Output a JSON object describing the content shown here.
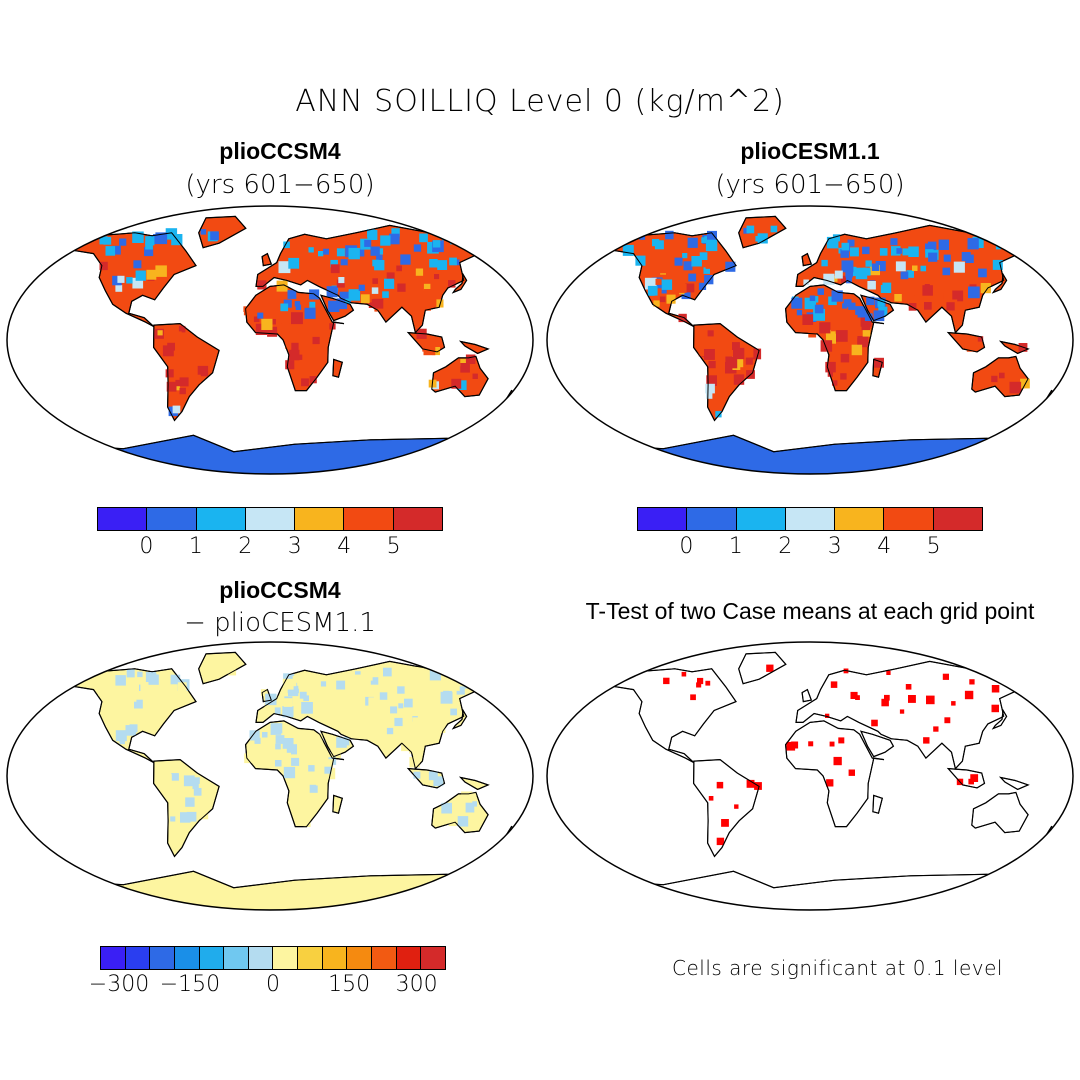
{
  "title": "ANN SOILLIQ Level 0 (kg/m^2)",
  "panels": [
    {
      "title": "plioCCSM4",
      "subtitle": "(yrs 601−650)"
    },
    {
      "title": "plioCESM1.1",
      "subtitle": "(yrs 601−650)"
    },
    {
      "title": "plioCCSM4",
      "subtitle": "− plioCESM1.1"
    },
    {
      "title": "T-Test of two Case means at each grid point",
      "subtitle": ""
    }
  ],
  "colorbar_top": {
    "colors": [
      "#3a1ff5",
      "#2e6ae6",
      "#1ab4f0",
      "#c6e6f5",
      "#f8b41e",
      "#f24a12",
      "#d42a2a"
    ],
    "labels": [
      "0",
      "1",
      "2",
      "3",
      "4",
      "5"
    ]
  },
  "colorbar_diff": {
    "colors": [
      "#3a1ff5",
      "#2a3ef0",
      "#2e6ae6",
      "#1a8fe8",
      "#20acec",
      "#70c8f0",
      "#b4dcf0",
      "#fdf5a0",
      "#f8d040",
      "#f8b41e",
      "#f58a10",
      "#f25a12",
      "#e02010",
      "#d42a2a"
    ],
    "labels": [
      "−300",
      "−150",
      "0",
      "150",
      "300"
    ]
  },
  "note": "Cells are significant at 0.1 level",
  "map_colors": {
    "ocean": "#ffffff",
    "cool": "#2e6ae6",
    "sky": "#1ab4f0",
    "pale": "#c6e6f5",
    "warm": "#f24a12",
    "dark_red": "#d42a2a",
    "orange": "#f8b41e",
    "diff_yellow": "#fdf5a0",
    "diff_blue": "#b4dcf0",
    "sig_red": "#ff0000"
  }
}
